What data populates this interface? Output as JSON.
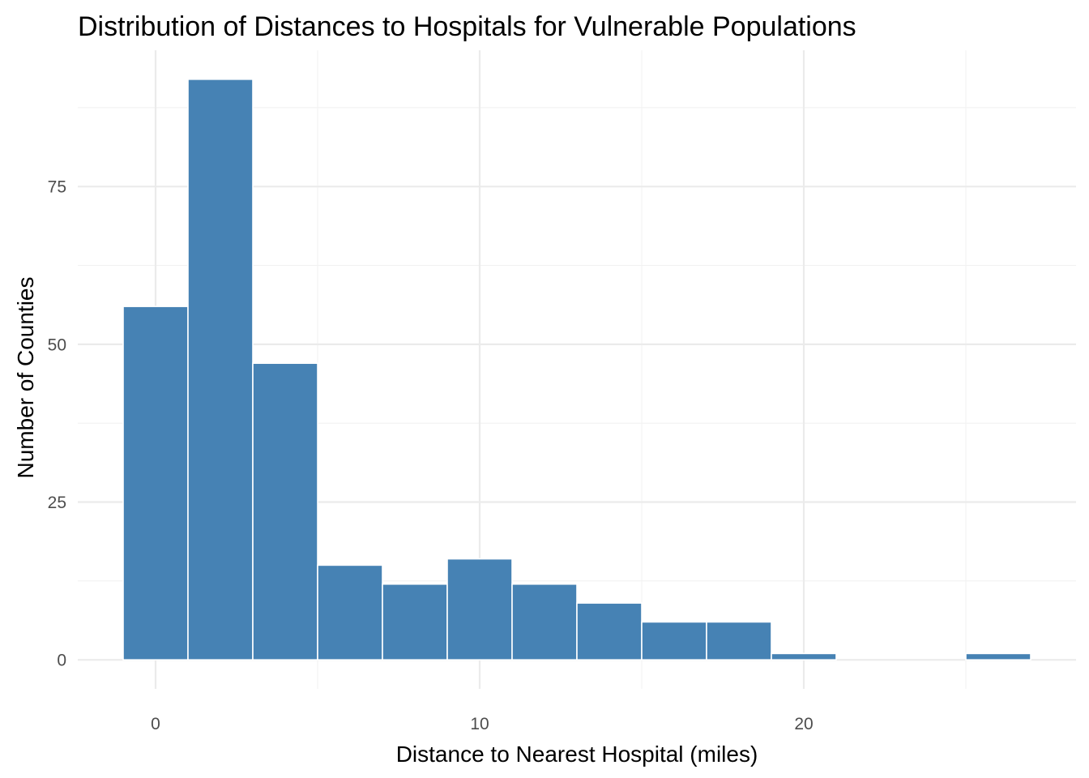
{
  "chart_data": {
    "type": "bar",
    "title": "Distribution of Distances to Hospitals for Vulnerable Populations",
    "xlabel": "Distance to Nearest Hospital (miles)",
    "ylabel": "Number of Counties",
    "bin_width": 2,
    "bins": [
      {
        "x0": -1,
        "x1": 1,
        "count": 56
      },
      {
        "x0": 1,
        "x1": 3,
        "count": 92
      },
      {
        "x0": 3,
        "x1": 5,
        "count": 47
      },
      {
        "x0": 5,
        "x1": 7,
        "count": 15
      },
      {
        "x0": 7,
        "x1": 9,
        "count": 12
      },
      {
        "x0": 9,
        "x1": 11,
        "count": 16
      },
      {
        "x0": 11,
        "x1": 13,
        "count": 12
      },
      {
        "x0": 13,
        "x1": 15,
        "count": 9
      },
      {
        "x0": 15,
        "x1": 17,
        "count": 6
      },
      {
        "x0": 17,
        "x1": 19,
        "count": 6
      },
      {
        "x0": 19,
        "x1": 21,
        "count": 1
      },
      {
        "x0": 21,
        "x1": 23,
        "count": 0
      },
      {
        "x0": 23,
        "x1": 25,
        "count": 0
      },
      {
        "x0": 25,
        "x1": 27,
        "count": 1
      }
    ],
    "xlim": [
      -2.4,
      28.4
    ],
    "ylim": [
      -4.6,
      96.6
    ],
    "x_ticks": [
      0,
      10,
      20
    ],
    "y_ticks": [
      0,
      25,
      50,
      75
    ],
    "x_minor": [
      -5,
      5,
      15,
      25
    ],
    "y_minor": [
      12.5,
      37.5,
      62.5,
      87.5
    ],
    "grid": true,
    "bar_fill": "#4682b4",
    "bar_outline": "#ffffff"
  }
}
